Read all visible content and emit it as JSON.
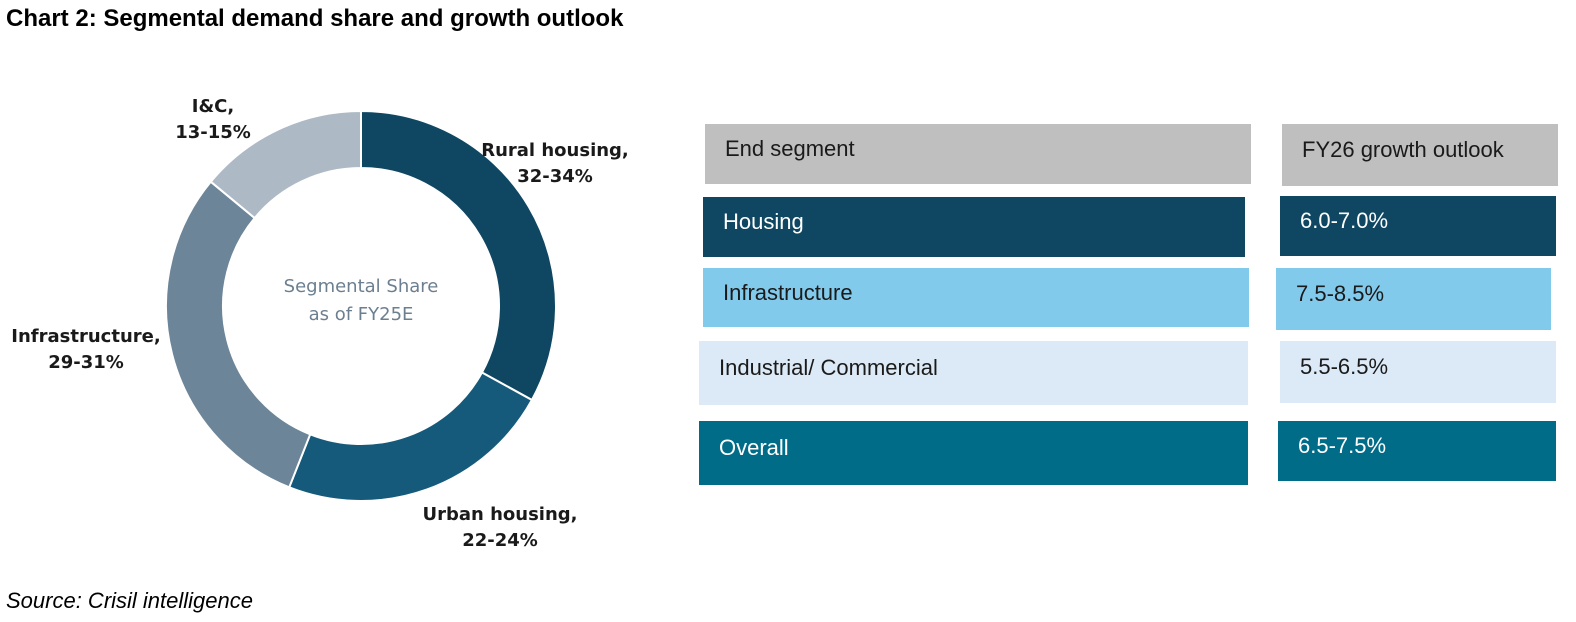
{
  "title": "Chart 2: Segmental demand share and growth outlook",
  "source": "Source: Crisil intelligence",
  "chart_data": {
    "type": "pie",
    "subtype": "donut",
    "center_label": [
      "Segmental Share",
      "as of FY25E"
    ],
    "slices": [
      {
        "label": [
          "Rural housing,",
          "32-34%"
        ],
        "value": 33,
        "color": "#0f4763"
      },
      {
        "label": [
          "Urban housing,",
          "22-24%"
        ],
        "value": 23,
        "color": "#155a7b"
      },
      {
        "label": [
          "Infrastructure,",
          "29-31%"
        ],
        "value": 30,
        "color": "#6c8598"
      },
      {
        "label": [
          "I&C,",
          "13-15%"
        ],
        "value": 14,
        "color": "#adb9c5"
      }
    ]
  },
  "table": {
    "headers": [
      "End segment",
      "FY26 growth outlook"
    ],
    "header_color": "#bfbfbf",
    "rows": [
      {
        "segment": "Housing",
        "outlook": "6.0-7.0%",
        "bg": "#0f4763",
        "fg": "#ffffff"
      },
      {
        "segment": "Infrastructure",
        "outlook": "7.5-8.5%",
        "bg": "#82caeb",
        "fg": "#1a1a1a"
      },
      {
        "segment": "Industrial/ Commercial",
        "outlook": "5.5-6.5%",
        "bg": "#dce9f7",
        "fg": "#1a1a1a"
      },
      {
        "segment": "Overall",
        "outlook": "6.5-7.5%",
        "bg": "#006c88",
        "fg": "#ffffff"
      }
    ]
  }
}
